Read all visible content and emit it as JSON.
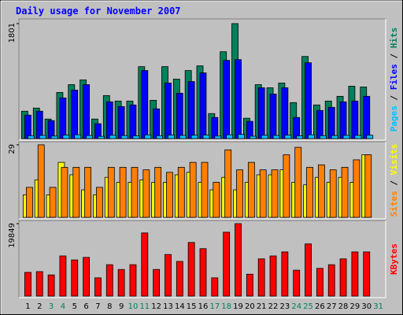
{
  "chart_data": {
    "type": "bar",
    "title": "Daily usage for November 2007",
    "categories": [
      "1",
      "2",
      "3",
      "4",
      "5",
      "6",
      "7",
      "8",
      "9",
      "10",
      "11",
      "12",
      "13",
      "14",
      "15",
      "16",
      "17",
      "18",
      "19",
      "20",
      "21",
      "22",
      "23",
      "24",
      "25",
      "26",
      "27",
      "28",
      "29",
      "30",
      "31"
    ],
    "category_colors": [
      "#000000",
      "#000000",
      "#00805c",
      "#00805c",
      "#000000",
      "#000000",
      "#000000",
      "#000000",
      "#000000",
      "#00805c",
      "#00805c",
      "#000000",
      "#000000",
      "#000000",
      "#000000",
      "#000000",
      "#00805c",
      "#00805c",
      "#000000",
      "#000000",
      "#000000",
      "#000000",
      "#000000",
      "#00805c",
      "#00805c",
      "#000000",
      "#000000",
      "#000000",
      "#000000",
      "#000000",
      "#00805c"
    ],
    "legend_separator": " / ",
    "panels": [
      {
        "ylim": [
          0,
          1850
        ],
        "yticks": [
          1801
        ],
        "series": [
          {
            "name": "Pages",
            "color": "#00c0ff",
            "values": [
              45,
              50,
              40,
              55,
              60,
              48,
              35,
              52,
              47,
              44,
              58,
              46,
              55,
              50,
              53,
              57,
              40,
              60,
              65,
              38,
              52,
              49,
              54,
              42,
              59,
              45,
              48,
              50,
              51,
              53,
              null
            ]
          },
          {
            "name": "Files",
            "color": "#0000ff",
            "values": [
              368,
              429,
              282,
              637,
              760,
              845,
              233,
              576,
              502,
              527,
              1066,
              466,
              870,
              711,
              894,
              1029,
              331,
              1225,
              1237,
              270,
              796,
              698,
              796,
              331,
              1188,
              441,
              490,
              576,
              588,
              662,
              null
            ]
          },
          {
            "name": "Hits",
            "color": "#00805c",
            "values": [
              429,
              478,
              306,
              723,
              845,
              919,
              306,
              674,
              588,
              588,
              1127,
              600,
              1127,
              931,
              1066,
              1139,
              392,
              1360,
              1801,
              319,
              845,
              796,
              870,
              564,
              1286,
              527,
              588,
              662,
              821,
              808,
              null
            ]
          }
        ]
      },
      {
        "ylim": [
          0,
          29.6
        ],
        "yticks": [
          29
        ],
        "series": [
          {
            "name": "Sites",
            "color": "#ff8000",
            "values": [
              12,
              29,
              12,
              20,
              20,
              20,
              12,
              20,
              20,
              20,
              19,
              20,
              18,
              20,
              22,
              22,
              14,
              27,
              19,
              22,
              19,
              19,
              25,
              28,
              20,
              21,
              19,
              20,
              23,
              25,
              null
            ]
          },
          {
            "name": "Visits",
            "color": "#ffff00",
            "values": [
              9,
              15,
              9,
              22,
              17,
              11,
              9,
              16,
              14,
              14,
              15,
              14,
              14,
              17,
              18,
              14,
              11,
              16,
              11,
              14,
              17,
              17,
              19,
              14,
              13,
              16,
              14,
              16,
              14,
              25,
              null
            ]
          }
        ]
      },
      {
        "ylim": [
          0,
          20280
        ],
        "yticks": [
          19849
        ],
        "series": [
          {
            "name": "KBytes",
            "color": "#ff0000",
            "values": [
              6500,
              6700,
              5800,
              11000,
              9900,
              10600,
              5000,
              8600,
              7300,
              8600,
              17300,
              7300,
              11400,
              9500,
              14700,
              13000,
              5000,
              17500,
              19849,
              6000,
              10200,
              11000,
              12100,
              7100,
              14300,
              7600,
              8600,
              10200,
              12100,
              12100,
              null
            ]
          }
        ]
      }
    ]
  }
}
